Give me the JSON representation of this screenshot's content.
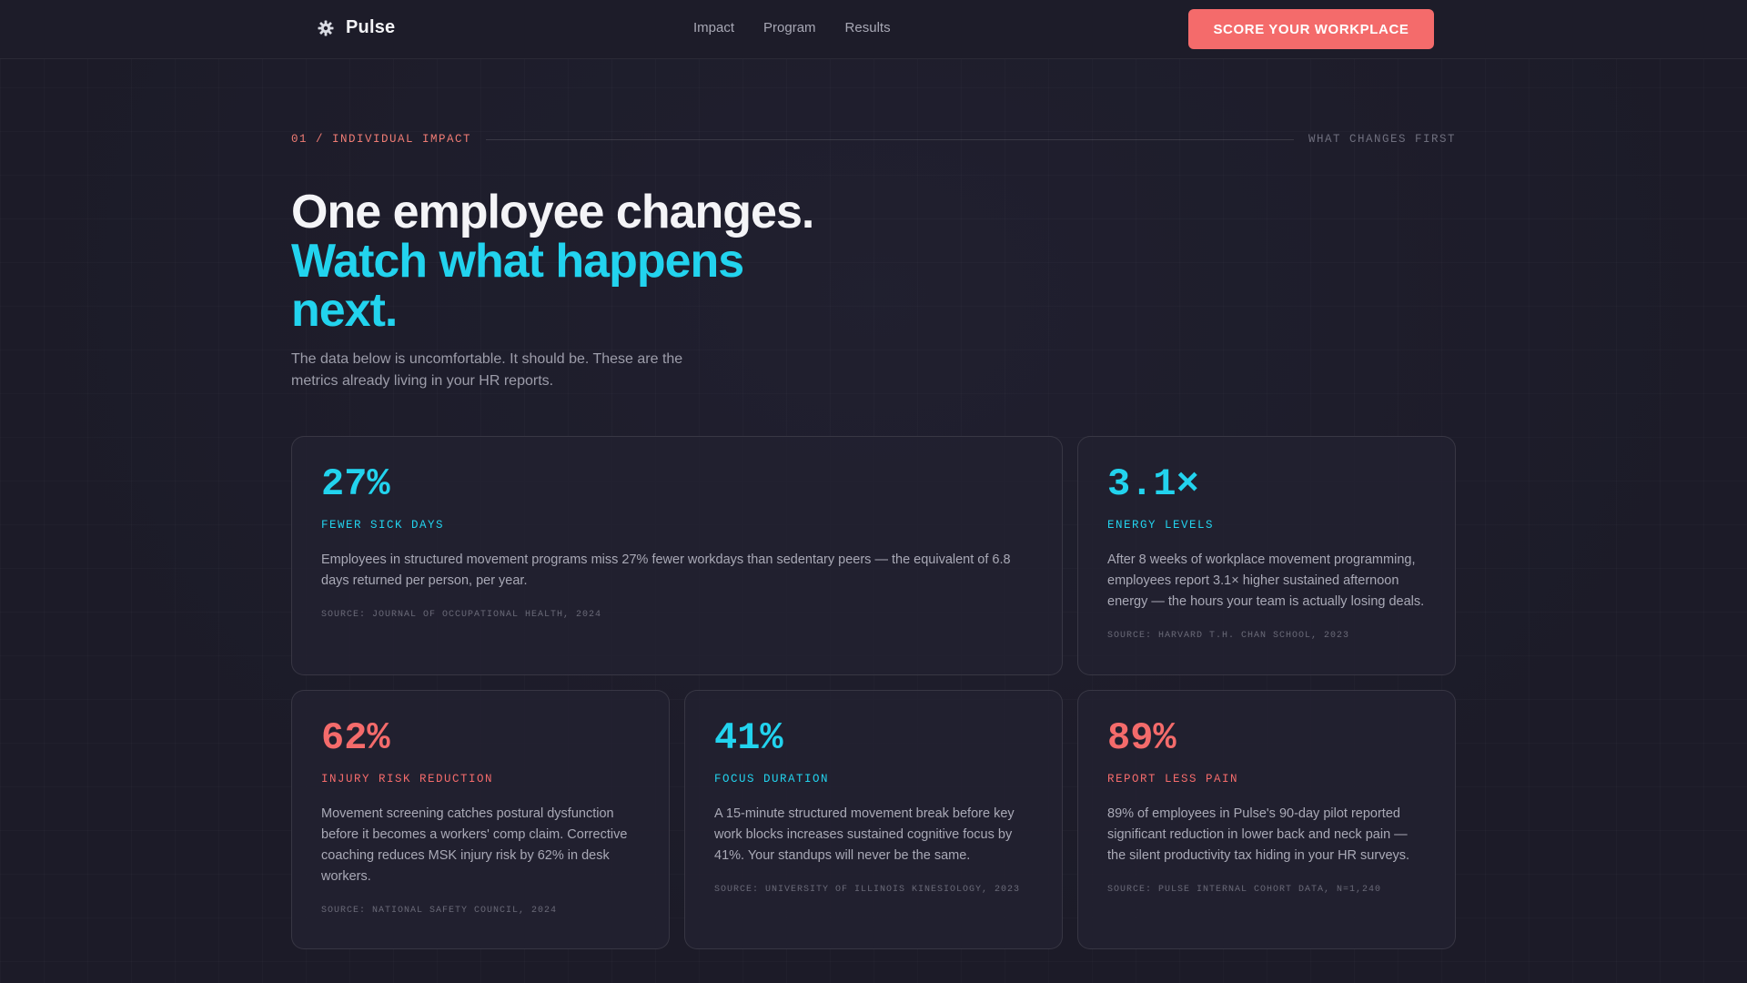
{
  "nav": {
    "brand": "Pulse",
    "brand_icon": "gear-icon",
    "links": [
      "Impact",
      "Program",
      "Results"
    ],
    "cta": "SCORE YOUR WORKPLACE"
  },
  "section": {
    "eyebrow": "01 / INDIVIDUAL IMPACT",
    "eyebrow_right": "WHAT CHANGES FIRST",
    "headline_line1": "One employee changes.",
    "headline_line2": "Watch what happens next.",
    "lede": "The data below is uncomfortable. It should be. These are the metrics already living in your HR reports."
  },
  "cards": [
    {
      "stat": "27%",
      "label": "FEWER SICK DAYS",
      "description": "Employees in structured movement programs miss 27% fewer workdays than sedentary peers — the equivalent of 6.8 days returned per person, per year.",
      "source": "SOURCE: JOURNAL OF OCCUPATIONAL HEALTH, 2024",
      "accent": "#22d3ee"
    },
    {
      "stat": "3.1×",
      "label": "ENERGY LEVELS",
      "description": "After 8 weeks of workplace movement programming, employees report 3.1× higher sustained afternoon energy — the hours your team is actually losing deals.",
      "source": "SOURCE: HARVARD T.H. CHAN SCHOOL, 2023",
      "accent": "#22d3ee"
    },
    {
      "stat": "62%",
      "label": "INJURY RISK REDUCTION",
      "description": "Movement screening catches postural dysfunction before it becomes a workers' comp claim. Corrective coaching reduces MSK injury risk by 62% in desk workers.",
      "source": "SOURCE: NATIONAL SAFETY COUNCIL, 2024",
      "accent": "#f46b6b"
    },
    {
      "stat": "41%",
      "label": "FOCUS DURATION",
      "description": "A 15-minute structured movement break before key work blocks increases sustained cognitive focus by 41%. Your standups will never be the same.",
      "source": "SOURCE: UNIVERSITY OF ILLINOIS KINESIOLOGY, 2023",
      "accent": "#22d3ee"
    },
    {
      "stat": "89%",
      "label": "REPORT LESS PAIN",
      "description": "89% of employees in Pulse's 90-day pilot reported significant reduction in lower back and neck pain — the silent productivity tax hiding in your HR surveys.",
      "source": "SOURCE: PULSE INTERNAL COHORT DATA, N=1,240",
      "accent": "#f46b6b"
    }
  ]
}
